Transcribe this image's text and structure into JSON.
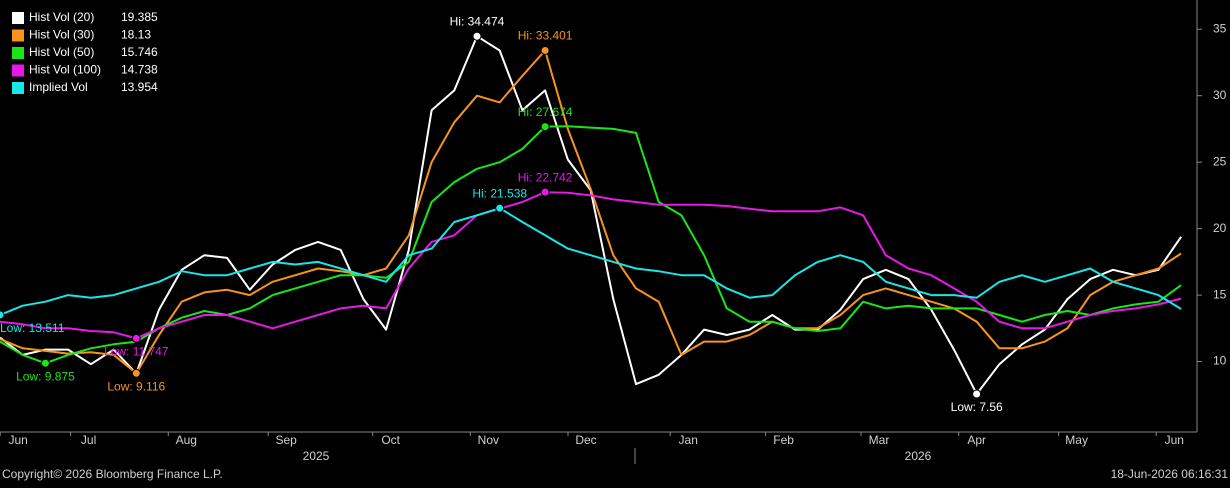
{
  "chart_data": {
    "type": "line",
    "x": [
      0,
      1,
      2,
      3,
      4,
      5,
      6,
      7,
      8,
      9,
      10,
      11,
      12,
      13,
      14,
      15,
      16,
      17,
      18,
      19,
      20,
      21,
      22,
      23,
      24,
      25,
      26,
      27,
      28,
      29,
      30,
      31,
      32,
      33,
      34,
      35,
      36,
      37,
      38,
      39,
      40,
      41,
      42,
      43,
      44,
      45,
      46,
      47,
      48,
      49,
      50,
      51,
      52
    ],
    "xlim": [
      0,
      52.7
    ],
    "xticks": [
      {
        "value": 0.8,
        "label": "Jun"
      },
      {
        "value": 3.9,
        "label": "Jul"
      },
      {
        "value": 8.2,
        "label": "Aug"
      },
      {
        "value": 12.6,
        "label": "Sep"
      },
      {
        "value": 17.2,
        "label": "Oct"
      },
      {
        "value": 21.5,
        "label": "Nov"
      },
      {
        "value": 25.8,
        "label": "Dec"
      },
      {
        "value": 30.3,
        "label": "Jan"
      },
      {
        "value": 34.5,
        "label": "Feb"
      },
      {
        "value": 38.7,
        "label": "Mar"
      },
      {
        "value": 43,
        "label": "Apr"
      },
      {
        "value": 47.4,
        "label": "May"
      },
      {
        "value": 51.7,
        "label": "Jun"
      }
    ],
    "years": [
      "2025",
      "2026"
    ],
    "ylim": [
      4.7,
      37.2
    ],
    "yticks": [
      10,
      15,
      20,
      25,
      30,
      35
    ],
    "grid": false,
    "legend": "top-left",
    "footer_left": "Copyright© 2026 Bloomberg Finance L.P.",
    "footer_right": "18-Jun-2026 06:16:31",
    "series": [
      {
        "name": "Hist Vol (20)",
        "color": "#ffffff",
        "values": [
          11.8,
          10.5,
          10.9,
          10.9,
          9.8,
          10.9,
          9.1,
          13.9,
          16.9,
          18,
          17.8,
          15.4,
          17.3,
          18.4,
          19,
          18.4,
          14.7,
          12.4,
          18.4,
          28.9,
          30.4,
          34.474,
          33.4,
          28.9,
          30.4,
          25.2,
          22.9,
          14.7,
          8.3,
          9,
          10.5,
          12.4,
          12,
          12.4,
          13.5,
          12.4,
          12.4,
          13.9,
          16.2,
          16.9,
          16.2,
          13.9,
          10.9,
          7.56,
          9.8,
          11.3,
          12.4,
          14.7,
          16.2,
          16.9,
          16.5,
          16.9,
          19.385
        ],
        "annotations": [
          {
            "index": 21,
            "label": "Hi: 34.474"
          },
          {
            "index": 43,
            "label": "Low: 7.56"
          }
        ]
      },
      {
        "name": "Hist Vol (30)",
        "color": "#f7941d",
        "values": [
          11.7,
          11,
          10.8,
          10.6,
          10.7,
          10.5,
          9.116,
          12,
          14.5,
          15.2,
          15.4,
          15,
          16,
          16.5,
          17,
          16.8,
          16.5,
          17,
          19.5,
          25,
          28,
          30,
          29.5,
          31.5,
          33.401,
          27.5,
          23,
          18,
          15.5,
          14.5,
          10.5,
          11.5,
          11.5,
          12,
          13,
          12.5,
          12.5,
          13.5,
          15,
          15.5,
          15,
          14.5,
          14,
          13,
          11,
          11,
          11.5,
          12.5,
          15,
          16,
          16.5,
          17,
          18.13
        ],
        "annotations": [
          {
            "index": 24,
            "label": "Hi: 33.401"
          },
          {
            "index": 6,
            "label": "Low: 9.116"
          }
        ]
      },
      {
        "name": "Hist Vol (50)",
        "color": "#19e619",
        "values": [
          11.5,
          10.5,
          9.875,
          10.5,
          11,
          11.3,
          11.5,
          12.5,
          13.3,
          13.8,
          13.5,
          14,
          15,
          15.5,
          16,
          16.5,
          16.5,
          16.3,
          17.5,
          22,
          23.5,
          24.5,
          25,
          26,
          27.674,
          27.7,
          27.6,
          27.5,
          27.2,
          22,
          21,
          18,
          14,
          13,
          13,
          12.5,
          12.3,
          12.5,
          14.5,
          14,
          14.2,
          14,
          14,
          14,
          13.5,
          13,
          13.5,
          13.8,
          13.5,
          14,
          14.3,
          14.5,
          15.746
        ],
        "annotations": [
          {
            "index": 24,
            "label": "Hi: 27.674"
          },
          {
            "index": 2,
            "label": "Low: 9.875"
          }
        ]
      },
      {
        "name": "Hist Vol (100)",
        "color": "#e619e6",
        "values": [
          13,
          12.8,
          12.5,
          12.5,
          12.3,
          12.2,
          11.747,
          12.5,
          13,
          13.5,
          13.5,
          13,
          12.5,
          13,
          13.5,
          14,
          14.2,
          14,
          17,
          19,
          19.5,
          21,
          21.5,
          22,
          22.742,
          22.7,
          22.5,
          22.2,
          22,
          21.8,
          21.8,
          21.8,
          21.7,
          21.5,
          21.3,
          21.3,
          21.3,
          21.6,
          21,
          18,
          17,
          16.5,
          15.5,
          14.5,
          13,
          12.5,
          12.5,
          13,
          13.5,
          13.8,
          14,
          14.3,
          14.738
        ],
        "annotations": [
          {
            "index": 24,
            "label": "Hi: 22.742"
          },
          {
            "index": 6,
            "label": "Low: 11.747"
          }
        ]
      },
      {
        "name": "Implied Vol",
        "color": "#19e6e6",
        "values": [
          13.511,
          14.2,
          14.5,
          15,
          14.8,
          15,
          15.5,
          16,
          16.8,
          16.5,
          16.5,
          17,
          17.5,
          17.3,
          17.5,
          17,
          16.5,
          16,
          18,
          18.5,
          20.5,
          21,
          21.538,
          20.5,
          19.5,
          18.5,
          18,
          17.5,
          17,
          16.8,
          16.5,
          16.5,
          15.5,
          14.8,
          15,
          16.5,
          17.5,
          18,
          17.5,
          16,
          15.5,
          15,
          15,
          14.8,
          16,
          16.5,
          16,
          16.5,
          17,
          16,
          15.5,
          15,
          13.954
        ],
        "annotations": [
          {
            "index": 22,
            "label": "Hi: 21.538"
          },
          {
            "index": 0,
            "label": "Low: 13.511"
          }
        ]
      }
    ]
  }
}
